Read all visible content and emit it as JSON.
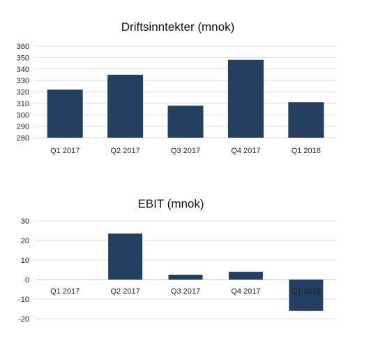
{
  "chart_data": [
    {
      "type": "bar",
      "title": "Driftsinntekter (mnok)",
      "xlabel": "",
      "ylabel": "",
      "categories": [
        "Q1 2017",
        "Q2 2017",
        "Q3 2017",
        "Q4 2017",
        "Q1 2018"
      ],
      "values": [
        322,
        335,
        308,
        348,
        311
      ],
      "ylim": [
        280,
        360
      ],
      "yticks": [
        280,
        290,
        300,
        310,
        320,
        330,
        340,
        350,
        360
      ],
      "grid": true,
      "legend": "none",
      "bar_color": "#243F60"
    },
    {
      "type": "bar",
      "title": "EBIT (mnok)",
      "xlabel": "",
      "ylabel": "",
      "categories": [
        "Q1 2017",
        "Q2 2017",
        "Q3 2017",
        "Q4 2017",
        "Q1 2018"
      ],
      "values": [
        0,
        23.5,
        2.5,
        4,
        -16
      ],
      "ylim": [
        -20,
        30
      ],
      "yticks": [
        -20,
        -10,
        0,
        10,
        20,
        30
      ],
      "grid": true,
      "legend": "none",
      "bar_color": "#243F60"
    }
  ]
}
